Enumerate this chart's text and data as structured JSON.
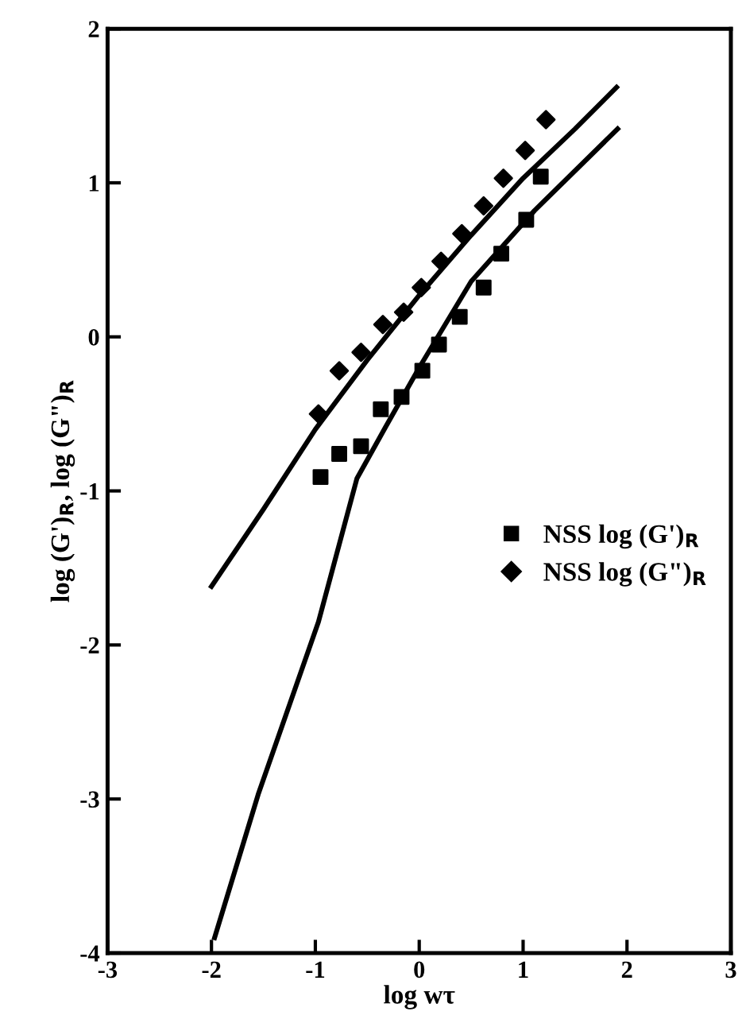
{
  "chart_data": {
    "type": "scatter",
    "xlabel": "log wτ",
    "ylabel": "log (G')$_{R}$, log (G\")$_{R}$",
    "xlim": [
      -3,
      3
    ],
    "ylim": [
      -4,
      2
    ],
    "xticks": [
      -3,
      -2,
      -1,
      0,
      1,
      2,
      3
    ],
    "yticks": [
      -4,
      -3,
      -2,
      -1,
      0,
      1,
      2
    ],
    "grid": false,
    "legend": "right",
    "series": [
      {
        "name": "NSS log (G')$_{R}$",
        "marker": "square",
        "color": "#000000",
        "x": [
          -0.95,
          -0.77,
          -0.56,
          -0.37,
          -0.17,
          0.03,
          0.19,
          0.39,
          0.62,
          0.79,
          1.03,
          1.17
        ],
        "values": [
          -0.91,
          -0.76,
          -0.71,
          -0.47,
          -0.39,
          -0.22,
          -0.05,
          0.13,
          0.32,
          0.54,
          0.76,
          1.04
        ]
      },
      {
        "name": "NSS log (G\")$_{R}$",
        "marker": "diamond",
        "color": "#000000",
        "x": [
          -0.97,
          -0.77,
          -0.56,
          -0.35,
          -0.15,
          0.02,
          0.21,
          0.41,
          0.62,
          0.81,
          1.02,
          1.22
        ],
        "values": [
          -0.5,
          -0.22,
          -0.1,
          0.08,
          0.16,
          0.32,
          0.49,
          0.67,
          0.85,
          1.03,
          1.21,
          1.41
        ]
      },
      {
        "type": "line",
        "line_style": "solid",
        "color": "#000000",
        "x": [
          -1.97,
          -1.55,
          -0.97,
          -0.6,
          -0.32,
          0,
          0.5,
          1.11,
          1.91
        ],
        "values": [
          -3.9,
          -2.97,
          -1.85,
          -0.92,
          -0.58,
          -0.2,
          0.36,
          0.82,
          1.35
        ]
      },
      {
        "type": "line",
        "line_style": "solid",
        "color": "#000000",
        "x": [
          -2,
          -1.5,
          -1,
          -0.5,
          0,
          0.5,
          1,
          1.5,
          1.9
        ],
        "values": [
          -1.62,
          -1.12,
          -0.6,
          -0.15,
          0.27,
          0.66,
          1.03,
          1.35,
          1.62
        ]
      }
    ]
  }
}
